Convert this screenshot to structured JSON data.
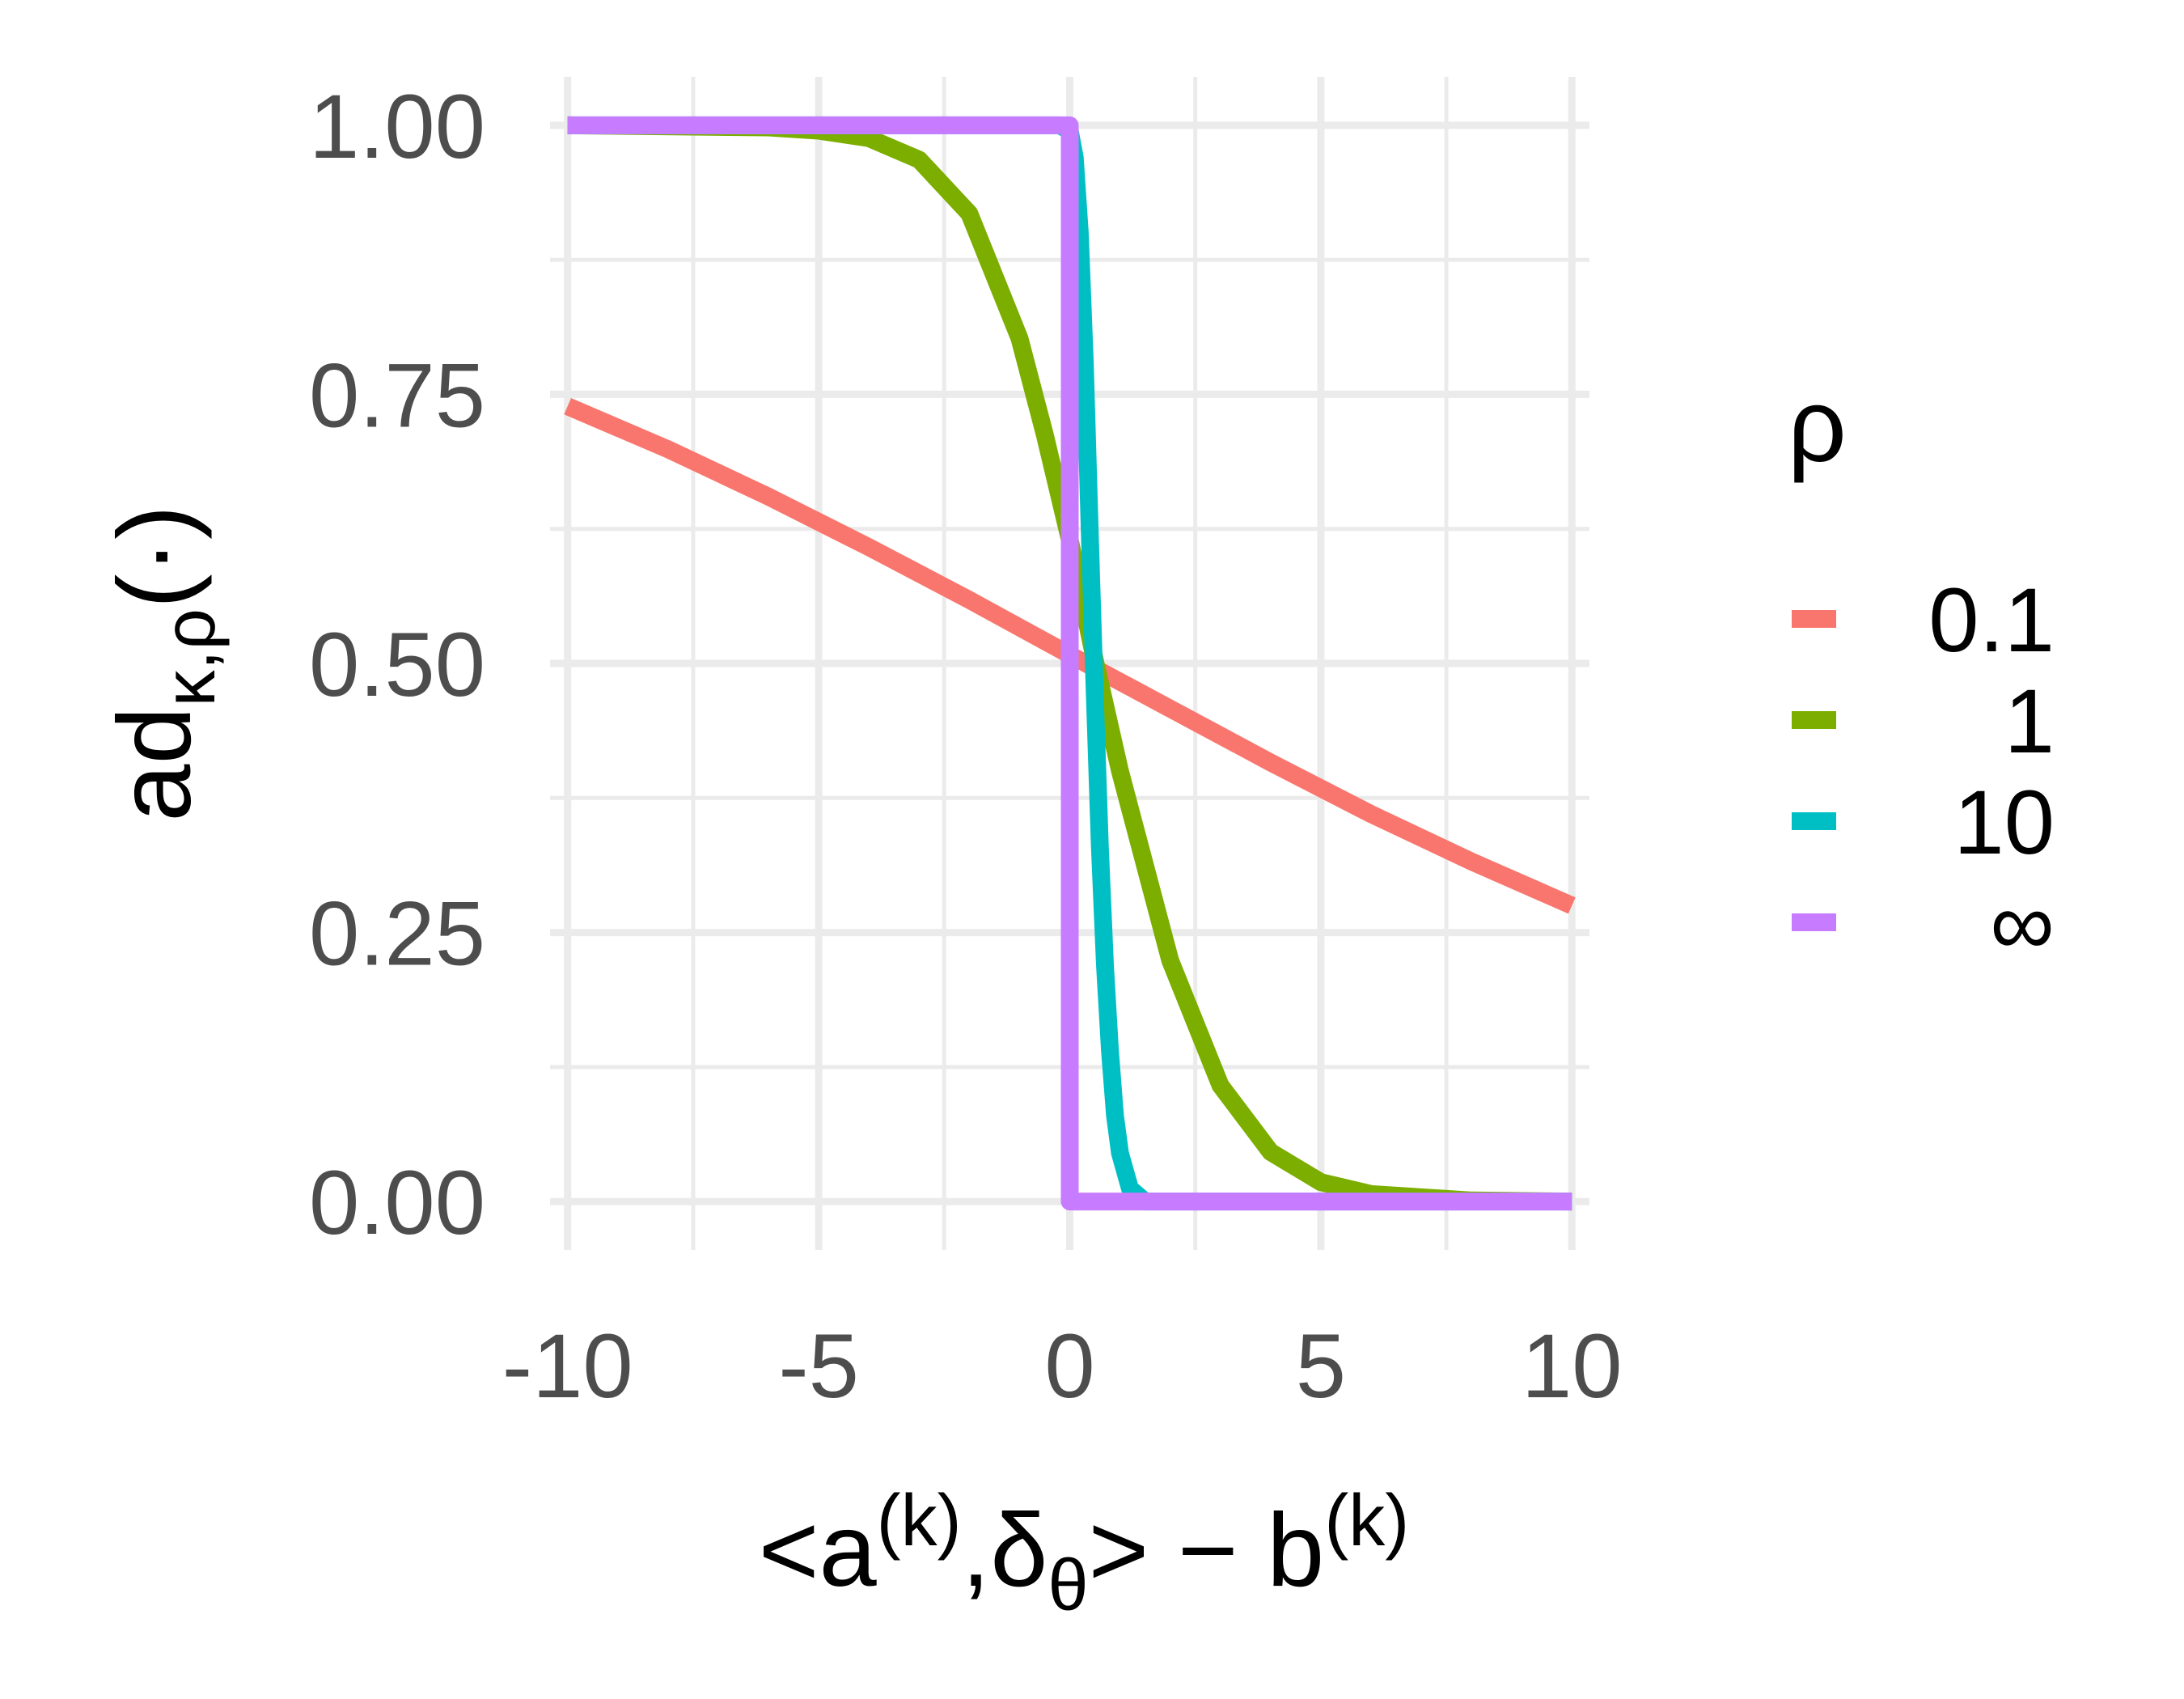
{
  "chart_data": {
    "type": "line",
    "title": "",
    "xlabel": "<a^(k),δ_θ> − b^(k)",
    "xlabel_parts": {
      "a": "<a",
      "k1": "(k)",
      "sep": ",δ",
      "theta": "θ",
      "minus": "> − b",
      "k2": "(k)"
    },
    "ylabel": "ad_{κ,ρ}(·)",
    "ylabel_parts": {
      "base": "ad",
      "sub": "κ,ρ",
      "tail": "(·)"
    },
    "xlim": [
      -10,
      10
    ],
    "ylim": [
      0,
      1
    ],
    "x_ticks": [
      -10,
      -5,
      0,
      5,
      10
    ],
    "x_tick_labels": [
      "-10",
      "-5",
      "0",
      "5",
      "10"
    ],
    "y_ticks": [
      0,
      0.25,
      0.5,
      0.75,
      1
    ],
    "y_tick_labels": [
      "0.00",
      "0.25",
      "0.50",
      "0.75",
      "1.00"
    ],
    "grid": true,
    "legend": {
      "title": "ρ",
      "placement": "right",
      "entries": [
        "0.1",
        "1",
        "10",
        "∞"
      ]
    },
    "series": [
      {
        "name": "0.1",
        "color": "#F8766D",
        "x": [
          -10,
          -8,
          -6,
          -4,
          -2,
          0,
          2,
          4,
          6,
          8,
          10
        ],
        "y": [
          0.739,
          0.699,
          0.655,
          0.608,
          0.559,
          0.508,
          0.458,
          0.408,
          0.36,
          0.316,
          0.275
        ]
      },
      {
        "name": "1",
        "color": "#7CAE00",
        "x": [
          -10,
          -6,
          -5,
          -4,
          -3,
          -2,
          -1,
          -0.5,
          0,
          0.5,
          1,
          2,
          3,
          4,
          5,
          6,
          8,
          10
        ],
        "y": [
          1.0,
          0.998,
          0.995,
          0.988,
          0.968,
          0.918,
          0.802,
          0.713,
          0.615,
          0.503,
          0.4,
          0.224,
          0.108,
          0.046,
          0.018,
          0.007,
          0.001,
          0.0
        ]
      },
      {
        "name": "10",
        "color": "#00BFC4",
        "x": [
          -10,
          -0.2,
          0,
          0.1,
          0.2,
          0.3,
          0.4,
          0.5,
          0.6,
          0.7,
          0.8,
          0.9,
          1.0,
          1.2,
          1.5,
          10
        ],
        "y": [
          1.0,
          1.0,
          0.995,
          0.97,
          0.9,
          0.78,
          0.62,
          0.47,
          0.33,
          0.22,
          0.14,
          0.08,
          0.045,
          0.012,
          0.0,
          0.0
        ]
      },
      {
        "name": "∞",
        "color": "#C77CFF",
        "x": [
          -10,
          0,
          0,
          10
        ],
        "y": [
          1,
          1,
          0,
          0
        ]
      }
    ]
  }
}
